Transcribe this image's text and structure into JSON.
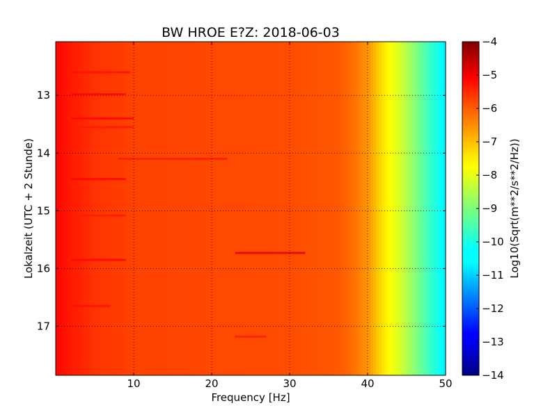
{
  "chart_data": {
    "type": "heatmap",
    "title": "BW HROE E?Z: 2018-06-03",
    "xlabel": "Frequency [Hz]",
    "ylabel": "Lokalzeit (UTC + 2 Stunde)",
    "xlim": [
      0,
      50
    ],
    "ylim": [
      12.07,
      17.85
    ],
    "x_ticks": [
      10,
      20,
      30,
      40,
      50
    ],
    "y_ticks": [
      13,
      14,
      15,
      16,
      17
    ],
    "grid": true,
    "y_inverted": true,
    "colormap": "jet",
    "colorbar": {
      "label": "Log10(Sqrt(m**2/s**2/Hz))",
      "range": [
        -14,
        -4
      ],
      "ticks": [
        -4,
        -5,
        -6,
        -7,
        -8,
        -9,
        -10,
        -11,
        -12,
        -13,
        -14
      ]
    },
    "frequency_profile": {
      "x": [
        0,
        2,
        5,
        10,
        20,
        30,
        36,
        38,
        40,
        42,
        44,
        46,
        48,
        50
      ],
      "values": [
        -5.3,
        -5.5,
        -5.75,
        -5.9,
        -5.95,
        -6.0,
        -6.1,
        -6.3,
        -6.7,
        -7.5,
        -8.1,
        -8.9,
        -9.7,
        -10.4
      ]
    },
    "features": [
      {
        "x_range": [
          2,
          9.5
        ],
        "time": 12.6,
        "value": -5.4
      },
      {
        "x_range": [
          2,
          9
        ],
        "time": 12.98,
        "value": -5.3
      },
      {
        "x_range": [
          2,
          10
        ],
        "time": 13.4,
        "value": -5.3
      },
      {
        "x_range": [
          3,
          10
        ],
        "time": 13.55,
        "value": -5.5
      },
      {
        "x_range": [
          8,
          22
        ],
        "time": 14.1,
        "value": -5.5
      },
      {
        "x_range": [
          2,
          9
        ],
        "time": 14.45,
        "value": -5.3
      },
      {
        "x_range": [
          3,
          9
        ],
        "time": 15.08,
        "value": -5.5
      },
      {
        "x_range": [
          23,
          32
        ],
        "time": 15.73,
        "value": -5.0
      },
      {
        "x_range": [
          2,
          9
        ],
        "time": 15.85,
        "value": -5.3
      },
      {
        "x_range": [
          2,
          7
        ],
        "time": 16.65,
        "value": -5.4
      },
      {
        "x_range": [
          23,
          27
        ],
        "time": 17.18,
        "value": -5.5
      }
    ]
  }
}
